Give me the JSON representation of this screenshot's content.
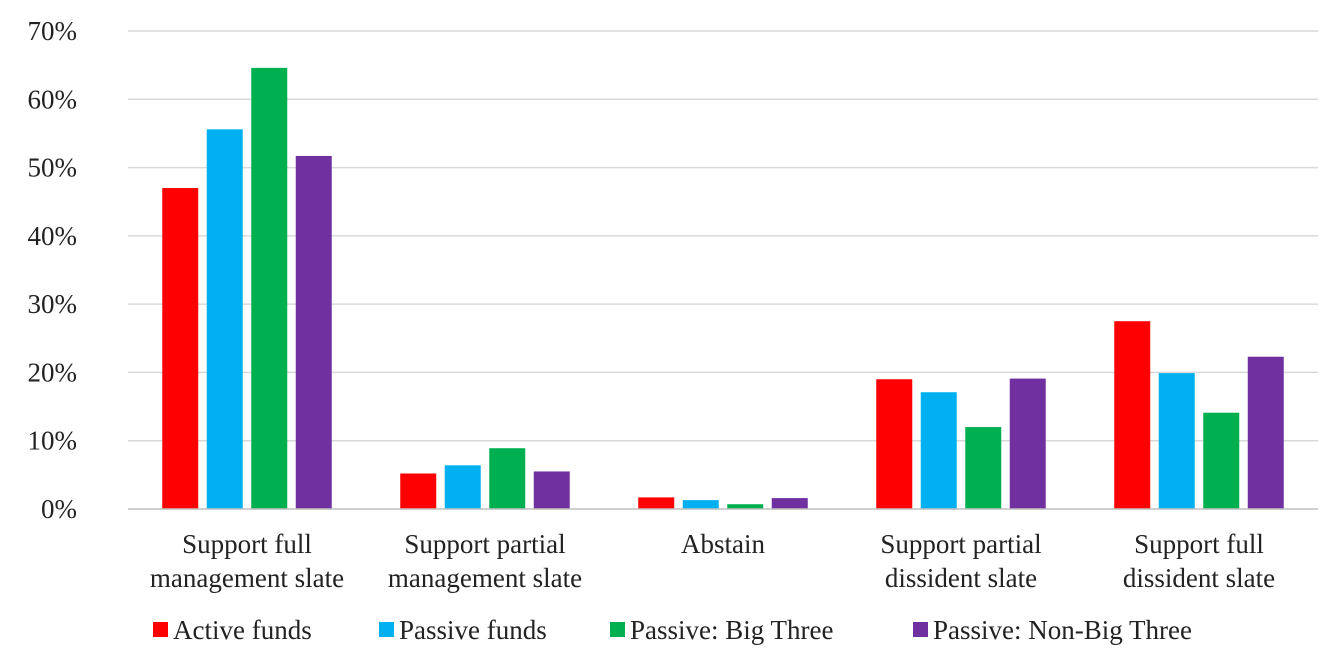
{
  "chart_data": {
    "type": "bar",
    "title": "",
    "xlabel": "",
    "ylabel": "",
    "ylim": [
      0,
      70
    ],
    "yticks": [
      0,
      10,
      20,
      30,
      40,
      50,
      60,
      70
    ],
    "ytick_labels": [
      "0%",
      "10%",
      "20%",
      "30%",
      "40%",
      "50%",
      "60%",
      "70%"
    ],
    "grid": true,
    "legend_position": "bottom",
    "categories": [
      [
        "Support full",
        "management slate"
      ],
      [
        "Support partial",
        "management slate"
      ],
      [
        "Abstain"
      ],
      [
        "Support partial",
        "dissident slate"
      ],
      [
        "Support full",
        "dissident slate"
      ]
    ],
    "series": [
      {
        "name": "Active funds",
        "color": "#ff0000",
        "values": [
          47.0,
          5.2,
          1.7,
          19.0,
          27.5
        ]
      },
      {
        "name": "Passive funds",
        "color": "#00b0f0",
        "values": [
          55.6,
          6.4,
          1.3,
          17.1,
          19.9
        ]
      },
      {
        "name": "Passive: Big Three",
        "color": "#00b050",
        "values": [
          64.6,
          8.9,
          0.7,
          12.0,
          14.1
        ]
      },
      {
        "name": "Passive: Non-Big Three",
        "color": "#7030a0",
        "values": [
          51.7,
          5.5,
          1.6,
          19.1,
          22.3
        ]
      }
    ]
  }
}
